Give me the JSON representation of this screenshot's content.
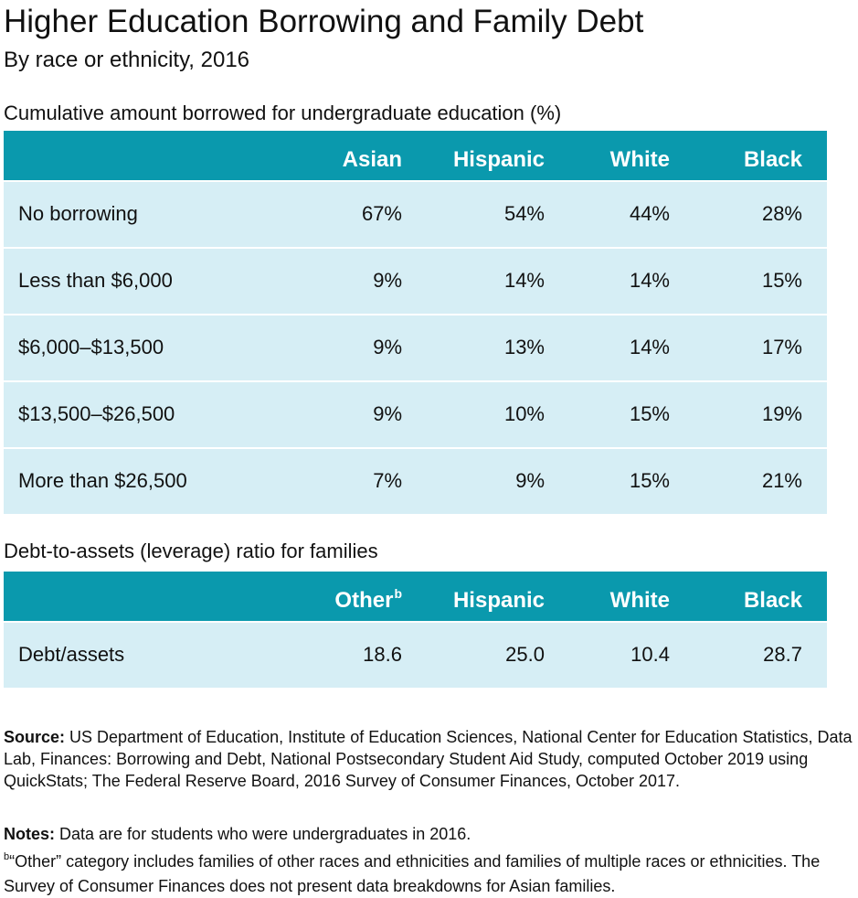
{
  "title": "Higher Education Borrowing and Family Debt",
  "subtitle": "By race or ethnicity, 2016",
  "chart_data": [
    {
      "type": "table",
      "title": "Cumulative amount borrowed for undergraduate education (%)",
      "columns": [
        "Asian",
        "Hispanic",
        "White",
        "Black"
      ],
      "rows": [
        {
          "label": "No borrowing",
          "values": [
            "67%",
            "54%",
            "44%",
            "28%"
          ]
        },
        {
          "label": "Less than $6,000",
          "values": [
            "9%",
            "14%",
            "14%",
            "15%"
          ]
        },
        {
          "label": "$6,000–$13,500",
          "values": [
            "9%",
            "13%",
            "14%",
            "17%"
          ]
        },
        {
          "label": "$13,500–$26,500",
          "values": [
            "9%",
            "10%",
            "15%",
            "19%"
          ]
        },
        {
          "label": "More than $26,500",
          "values": [
            "7%",
            "9%",
            "15%",
            "21%"
          ]
        }
      ]
    },
    {
      "type": "table",
      "title": "Debt-to-assets (leverage) ratio for families",
      "columns": [
        "Other",
        "Hispanic",
        "White",
        "Black"
      ],
      "column_superscripts": [
        "b",
        "",
        "",
        ""
      ],
      "rows": [
        {
          "label": "Debt/assets",
          "values": [
            "18.6",
            "25.0",
            "10.4",
            "28.7"
          ]
        }
      ]
    }
  ],
  "source_label": "Source:",
  "source_text": " US Department of Education, Institute of Education Sciences, National Center for Education Statistics, Data Lab, Finances: Borrowing and Debt, National Postsecondary Student Aid Study, computed October 2019 using QuickStats; The Federal Reserve Board, 2016 Survey of Consumer Finances, October 2017.",
  "notes_label": "Notes:",
  "notes_text": " Data are for students who were undergraduates in 2016.",
  "footnote_mark": "b",
  "footnote_text": "“Other” category includes families of other races and ethnicities and families of multiple races or ethnicities. The Survey of Consumer Finances does not present data breakdowns for Asian families."
}
